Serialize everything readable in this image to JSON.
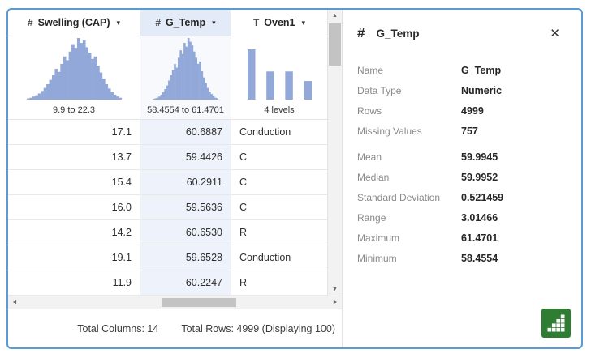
{
  "colors": {
    "accent": "#5b9bd5",
    "histogram_fill": "#91a8d8",
    "selected_header_bg": "#e3eaf8",
    "selected_cell_bg": "#eef2fb",
    "selected_hist_bg": "#f7f9fd",
    "chart_button_green": "#2e7d32"
  },
  "icons": {
    "caret": "▾",
    "up": "▲",
    "down": "▼",
    "left": "◄",
    "right": "►",
    "close": "✕"
  },
  "table": {
    "columns": [
      {
        "type": "numeric",
        "type_symbol": "#",
        "label": "Swelling (CAP)",
        "range_label": "9.9 to 22.3",
        "selected": false,
        "align": "right"
      },
      {
        "type": "numeric",
        "type_symbol": "#",
        "label": "G_Temp",
        "range_label": "58.4554 to 61.4701",
        "selected": true,
        "align": "right"
      },
      {
        "type": "text",
        "type_symbol": "T",
        "label": "Oven1",
        "range_label": "4 levels",
        "selected": false,
        "align": "left"
      }
    ],
    "rows": [
      [
        "17.1",
        "60.6887",
        "Conduction"
      ],
      [
        "13.7",
        "59.4426",
        "C"
      ],
      [
        "15.4",
        "60.2911",
        "C"
      ],
      [
        "16.0",
        "59.5636",
        "C"
      ],
      [
        "14.2",
        "60.6530",
        "R"
      ],
      [
        "19.1",
        "59.6528",
        "Conduction"
      ],
      [
        "11.9",
        "60.2247",
        "R"
      ]
    ],
    "footer": {
      "total_columns": "Total Columns: 14",
      "total_rows": "Total Rows: 4999 (Displaying 100)"
    }
  },
  "details": {
    "type_symbol": "#",
    "title": "G_Temp",
    "stats_primary": [
      {
        "label": "Name",
        "value": "G_Temp"
      },
      {
        "label": "Data Type",
        "value": "Numeric"
      },
      {
        "label": "Rows",
        "value": "4999"
      },
      {
        "label": "Missing Values",
        "value": "757"
      }
    ],
    "stats_secondary": [
      {
        "label": "Mean",
        "value": "59.9945"
      },
      {
        "label": "Median",
        "value": "59.9952"
      },
      {
        "label": "Standard Deviation",
        "value": "0.521459"
      },
      {
        "label": "Range",
        "value": "3.01466"
      },
      {
        "label": "Maximum",
        "value": "61.4701"
      },
      {
        "label": "Minimum",
        "value": "58.4554"
      }
    ]
  },
  "chart_data": [
    {
      "type": "histogram",
      "title": "Swelling (CAP)",
      "range_label": "9.9 to 22.3",
      "bins": [
        2,
        3,
        5,
        7,
        10,
        14,
        19,
        25,
        32,
        40,
        50,
        45,
        58,
        70,
        64,
        78,
        90,
        84,
        100,
        92,
        96,
        85,
        76,
        66,
        70,
        55,
        44,
        34,
        25,
        18,
        12,
        8,
        5,
        3
      ]
    },
    {
      "type": "histogram",
      "title": "G_Temp",
      "range_label": "58.4554 to 61.4701",
      "bins": [
        1,
        2,
        3,
        5,
        8,
        12,
        17,
        23,
        31,
        40,
        48,
        58,
        52,
        68,
        80,
        74,
        92,
        86,
        100,
        94,
        88,
        78,
        68,
        58,
        62,
        46,
        36,
        27,
        19,
        13,
        9,
        6,
        3,
        2
      ]
    },
    {
      "type": "bar",
      "title": "Oven1",
      "range_label": "4 levels",
      "values": [
        100,
        56,
        56,
        37
      ]
    }
  ]
}
